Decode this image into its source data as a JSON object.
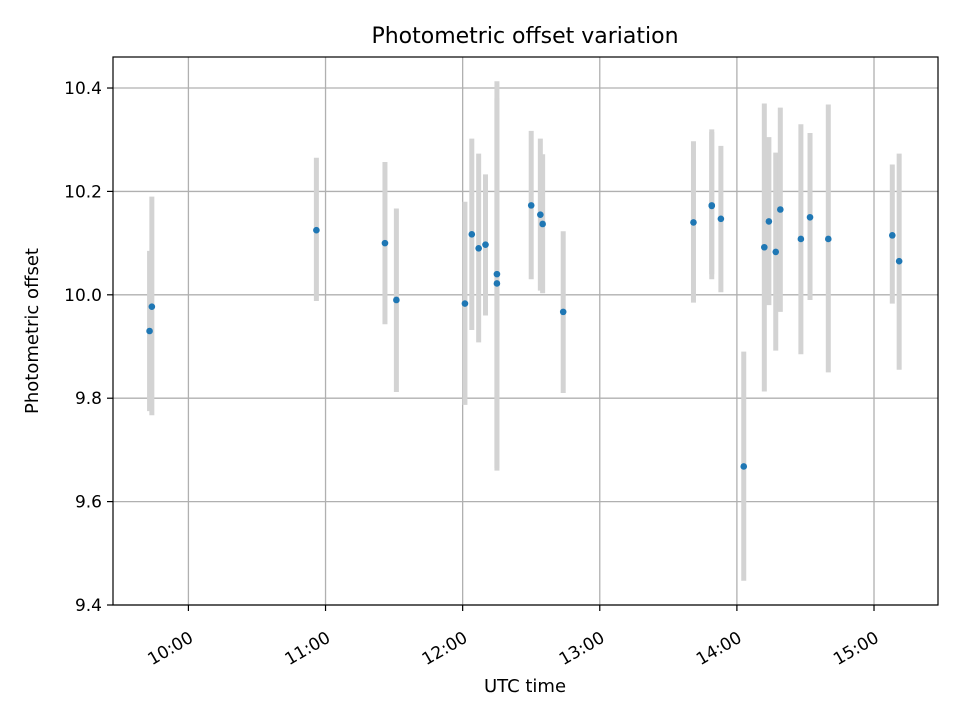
{
  "chart_data": {
    "type": "scatter",
    "title": "Photometric offset variation",
    "xlabel": "UTC time",
    "ylabel": "Photometric offset",
    "xlim": [
      "09:27",
      "15:28"
    ],
    "ylim": [
      9.4,
      10.46
    ],
    "grid": true,
    "x_ticks": [
      "10:00",
      "11:00",
      "12:00",
      "13:00",
      "14:00",
      "15:00"
    ],
    "y_ticks": [
      "9.4",
      "9.6",
      "9.8",
      "10.0",
      "10.2",
      "10.4"
    ],
    "colors": {
      "point": "#1f77b4",
      "errorbar": "#d3d3d3",
      "grid": "#b0b0b0"
    },
    "points": [
      {
        "time": "09:43",
        "y": 9.93,
        "low": 9.775,
        "high": 10.085
      },
      {
        "time": "09:44",
        "y": 9.977,
        "low": 9.767,
        "high": 10.19
      },
      {
        "time": "10:56",
        "y": 10.125,
        "low": 9.988,
        "high": 10.265
      },
      {
        "time": "11:26",
        "y": 10.1,
        "low": 9.943,
        "high": 10.257
      },
      {
        "time": "11:31",
        "y": 9.99,
        "low": 9.812,
        "high": 10.167
      },
      {
        "time": "12:01",
        "y": 9.983,
        "low": 9.787,
        "high": 10.18
      },
      {
        "time": "12:04",
        "y": 10.117,
        "low": 9.932,
        "high": 10.302
      },
      {
        "time": "12:07",
        "y": 10.09,
        "low": 9.908,
        "high": 10.273
      },
      {
        "time": "12:10",
        "y": 10.097,
        "low": 9.96,
        "high": 10.233
      },
      {
        "time": "12:15",
        "y": 10.04,
        "low": 9.66,
        "high": 10.413
      },
      {
        "time": "12:15",
        "y": 10.022,
        "low": 9.665,
        "high": 10.38
      },
      {
        "time": "12:30",
        "y": 10.173,
        "low": 10.03,
        "high": 10.317
      },
      {
        "time": "12:34",
        "y": 10.155,
        "low": 10.008,
        "high": 10.302
      },
      {
        "time": "12:35",
        "y": 10.137,
        "low": 10.003,
        "high": 10.272
      },
      {
        "time": "12:44",
        "y": 9.967,
        "low": 9.81,
        "high": 10.123
      },
      {
        "time": "13:41",
        "y": 10.14,
        "low": 9.985,
        "high": 10.297
      },
      {
        "time": "13:49",
        "y": 10.172,
        "low": 10.03,
        "high": 10.32
      },
      {
        "time": "13:49",
        "y": 10.173,
        "low": 10.04,
        "high": 10.315
      },
      {
        "time": "13:53",
        "y": 10.147,
        "low": 10.005,
        "high": 10.288
      },
      {
        "time": "14:03",
        "y": 9.668,
        "low": 9.447,
        "high": 9.89
      },
      {
        "time": "14:12",
        "y": 10.092,
        "low": 9.813,
        "high": 10.37
      },
      {
        "time": "14:14",
        "y": 10.142,
        "low": 9.98,
        "high": 10.305
      },
      {
        "time": "14:17",
        "y": 10.083,
        "low": 9.892,
        "high": 10.275
      },
      {
        "time": "14:19",
        "y": 10.165,
        "low": 9.967,
        "high": 10.362
      },
      {
        "time": "14:28",
        "y": 10.108,
        "low": 9.885,
        "high": 10.33
      },
      {
        "time": "14:32",
        "y": 10.15,
        "low": 9.99,
        "high": 10.313
      },
      {
        "time": "14:40",
        "y": 10.108,
        "low": 9.85,
        "high": 10.368
      },
      {
        "time": "15:08",
        "y": 10.115,
        "low": 9.983,
        "high": 10.252
      },
      {
        "time": "15:11",
        "y": 10.065,
        "low": 9.855,
        "high": 10.273
      }
    ]
  }
}
